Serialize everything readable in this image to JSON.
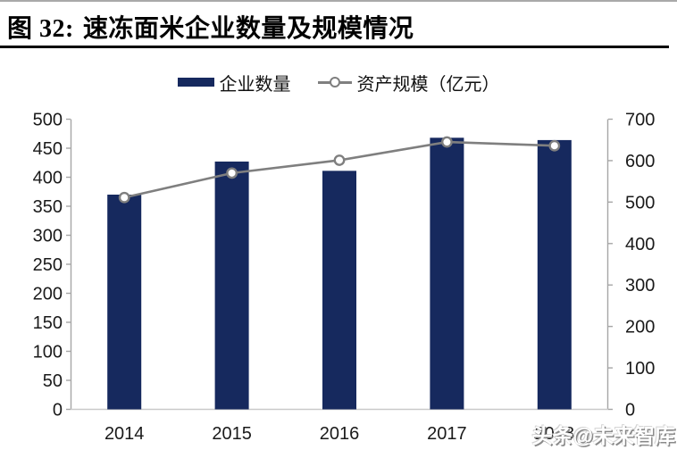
{
  "title": {
    "prefix": "图 32:",
    "text": "速冻面米企业数量及规模情况"
  },
  "legend": {
    "bar_label": "企业数量",
    "line_label": "资产规模（亿元）"
  },
  "watermark": "头条@未来智库",
  "colors": {
    "bar": "#16295E",
    "line": "#7F7F7F",
    "marker_fill": "#FFFFFF",
    "axis": "#A6A6A6",
    "baseline": "#C9C9C9",
    "text": "#1A1A1A"
  },
  "chart_data": {
    "type": "bar",
    "subtype": "bar+line-dual-axis",
    "title": "速冻面米企业数量及规模情况",
    "categories": [
      "2014",
      "2015",
      "2016",
      "2017",
      "2018"
    ],
    "series": [
      {
        "name": "企业数量",
        "type": "bar",
        "axis": "left",
        "values": [
          370,
          427,
          411,
          468,
          464
        ]
      },
      {
        "name": "资产规模（亿元）",
        "type": "line",
        "axis": "right",
        "values": [
          511,
          570,
          601,
          645,
          636
        ]
      }
    ],
    "left_axis": {
      "min": 0,
      "max": 500,
      "step": 50,
      "ticks": [
        0,
        50,
        100,
        150,
        200,
        250,
        300,
        350,
        400,
        450,
        500
      ]
    },
    "right_axis": {
      "min": 0,
      "max": 700,
      "step": 100,
      "ticks": [
        0,
        100,
        200,
        300,
        400,
        500,
        600,
        700
      ]
    },
    "grid": false,
    "legend_position": "top"
  }
}
